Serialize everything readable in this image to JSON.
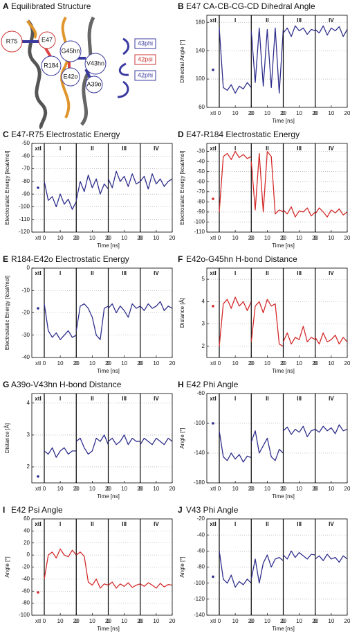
{
  "structure": {
    "label": "A",
    "title": "Equilibrated Structure",
    "residues": [
      "R75",
      "E47",
      "G45hn",
      "R184",
      "V43hn",
      "E42o",
      "A39o"
    ],
    "angles": [
      "43phi",
      "42psi",
      "42phi"
    ]
  },
  "chart_data": [
    {
      "type": "line",
      "label": "B",
      "title": "E47 CA-CB-CG-CD Dihedral Angle",
      "ylabel": "Dihedral Angle [°]",
      "xlabel": "Time [ns]",
      "xtl_label": "xtl",
      "xtl_value": 113,
      "color": "#2e2e8c",
      "ylim": [
        60,
        190
      ],
      "yticks": [
        60,
        100,
        140,
        180
      ],
      "xlim": [
        0,
        20
      ],
      "xticks": [
        0,
        10,
        20
      ],
      "x": [
        0,
        2.5,
        5,
        7.5,
        10,
        12.5,
        15,
        17.5,
        20
      ],
      "series": [
        {
          "name": "I",
          "values": [
            172,
            88,
            84,
            92,
            80,
            90,
            86,
            95,
            88
          ]
        },
        {
          "name": "II",
          "values": [
            168,
            95,
            172,
            90,
            170,
            88,
            172,
            80,
            170
          ]
        },
        {
          "name": "III",
          "values": [
            165,
            172,
            160,
            175,
            168,
            172,
            163,
            170,
            168
          ]
        },
        {
          "name": "IV",
          "values": [
            170,
            165,
            175,
            162,
            172,
            168,
            174,
            160,
            170
          ]
        }
      ]
    },
    {
      "type": "line",
      "label": "C",
      "title": "E47-R75 Electrostatic Energy",
      "ylabel": "Electrostatic Energy [kcal/mol]",
      "xlabel": "Time [ns]",
      "xtl_label": "xtl",
      "xtl_value": -85,
      "color": "#2e2e8c",
      "ylim": [
        -120,
        -50
      ],
      "yticks": [
        -120,
        -110,
        -100,
        -90,
        -80,
        -70,
        -60,
        -50
      ],
      "xlim": [
        0,
        20
      ],
      "xticks": [
        0,
        10,
        20
      ],
      "x": [
        0,
        2.5,
        5,
        7.5,
        10,
        12.5,
        15,
        17.5,
        20
      ],
      "series": [
        {
          "name": "I",
          "values": [
            -80,
            -95,
            -92,
            -100,
            -90,
            -98,
            -94,
            -102,
            -96
          ]
        },
        {
          "name": "II",
          "values": [
            -95,
            -80,
            -88,
            -75,
            -85,
            -78,
            -90,
            -82,
            -86
          ]
        },
        {
          "name": "III",
          "values": [
            -78,
            -85,
            -72,
            -80,
            -76,
            -84,
            -74,
            -82,
            -80
          ]
        },
        {
          "name": "IV",
          "values": [
            -80,
            -76,
            -86,
            -74,
            -82,
            -78,
            -84,
            -80,
            -78
          ]
        }
      ]
    },
    {
      "type": "line",
      "label": "D",
      "title": "E47-R184 Electrostatic Energy",
      "ylabel": "Electrostatic Energy [kcal/mol]",
      "xlabel": "Time [ns]",
      "xtl_label": "xtl",
      "xtl_value": -77,
      "color": "#d42a2a",
      "ylim": [
        -110,
        -22
      ],
      "yticks": [
        -110,
        -100,
        -90,
        -80,
        -70,
        -60,
        -50,
        -40,
        -30
      ],
      "xlim": [
        0,
        20
      ],
      "xticks": [
        0,
        10,
        20
      ],
      "x": [
        0,
        2.5,
        5,
        7.5,
        10,
        12.5,
        15,
        17.5,
        20
      ],
      "series": [
        {
          "name": "I",
          "values": [
            -90,
            -35,
            -32,
            -38,
            -30,
            -36,
            -33,
            -37,
            -35
          ]
        },
        {
          "name": "II",
          "values": [
            -40,
            -88,
            -32,
            -90,
            -30,
            -35,
            -92,
            -88,
            -90
          ]
        },
        {
          "name": "III",
          "values": [
            -88,
            -92,
            -85,
            -95,
            -89,
            -90,
            -86,
            -94,
            -90
          ]
        },
        {
          "name": "IV",
          "values": [
            -92,
            -86,
            -90,
            -95,
            -88,
            -91,
            -87,
            -93,
            -90
          ]
        }
      ]
    },
    {
      "type": "line",
      "label": "E",
      "title": "R184-E42o Electrostatic Energy",
      "ylabel": "Electrostatic Energy [kcal/mol]",
      "xlabel": "Time [ns]",
      "xtl_label": "xtl",
      "xtl_value": -18,
      "color": "#2e2e8c",
      "ylim": [
        -40,
        0
      ],
      "yticks": [
        -40,
        -30,
        -20,
        -10,
        0
      ],
      "xlim": [
        0,
        20
      ],
      "xticks": [
        0,
        10,
        20
      ],
      "x": [
        0,
        2.5,
        5,
        7.5,
        10,
        12.5,
        15,
        17.5,
        20
      ],
      "series": [
        {
          "name": "I",
          "values": [
            -16,
            -28,
            -31,
            -29,
            -32,
            -30,
            -28,
            -31,
            -30
          ]
        },
        {
          "name": "II",
          "values": [
            -28,
            -17,
            -16,
            -18,
            -22,
            -30,
            -32,
            -18,
            -17
          ]
        },
        {
          "name": "III",
          "values": [
            -18,
            -16,
            -20,
            -17,
            -19,
            -22,
            -16,
            -18,
            -17
          ]
        },
        {
          "name": "IV",
          "values": [
            -17,
            -19,
            -16,
            -18,
            -17,
            -15,
            -19,
            -17,
            -18
          ]
        }
      ]
    },
    {
      "type": "line",
      "label": "F",
      "title": "E42o-G45hn H-bond Distance",
      "ylabel": "Distance [Å]",
      "xlabel": "Time [ns]",
      "xtl_label": "xtl",
      "xtl_value": 3.8,
      "color": "#d42a2a",
      "ylim": [
        1.5,
        5.5
      ],
      "yticks": [
        2,
        3,
        4,
        5
      ],
      "xlim": [
        0,
        20
      ],
      "xticks": [
        0,
        10,
        20
      ],
      "x": [
        0,
        2.5,
        5,
        7.5,
        10,
        12.5,
        15,
        17.5,
        20
      ],
      "series": [
        {
          "name": "I",
          "values": [
            2,
            3.9,
            4.1,
            3.7,
            4.2,
            3.8,
            4,
            3.6,
            4
          ]
        },
        {
          "name": "II",
          "values": [
            2.2,
            3.8,
            4,
            3.5,
            4.1,
            3.8,
            3.9,
            2.1,
            2
          ]
        },
        {
          "name": "III",
          "values": [
            2.2,
            2.6,
            2.1,
            2.4,
            2.3,
            2.9,
            2.2,
            2.4,
            2.3
          ]
        },
        {
          "name": "IV",
          "values": [
            2.4,
            2.1,
            2.6,
            2.2,
            2.3,
            2.5,
            2.1,
            2.4,
            2.2
          ]
        }
      ]
    },
    {
      "type": "line",
      "label": "G",
      "title": "A39o-V43hn H-bond Distance",
      "ylabel": "Distance [Å]",
      "xlabel": "Time [ns]",
      "xtl_label": "xtl",
      "xtl_value": 1.7,
      "color": "#2e2e8c",
      "ylim": [
        1.5,
        4.3
      ],
      "yticks": [
        2,
        3,
        4
      ],
      "xlim": [
        0,
        20
      ],
      "xticks": [
        0,
        10,
        20
      ],
      "x": [
        0,
        2.5,
        5,
        7.5,
        10,
        12.5,
        15,
        17.5,
        20
      ],
      "series": [
        {
          "name": "I",
          "values": [
            2.5,
            2.4,
            2.6,
            2.3,
            2.5,
            2.6,
            2.4,
            2.5,
            2.5
          ]
        },
        {
          "name": "II",
          "values": [
            2.8,
            2.9,
            2.6,
            2.4,
            2.5,
            2.9,
            2.8,
            3,
            2.7
          ]
        },
        {
          "name": "III",
          "values": [
            2.8,
            2.9,
            2.7,
            2.8,
            3,
            2.7,
            2.9,
            2.8,
            2.8
          ]
        },
        {
          "name": "IV",
          "values": [
            2.7,
            2.9,
            2.8,
            2.7,
            2.9,
            2.8,
            2.7,
            2.9,
            2.8
          ]
        }
      ]
    },
    {
      "type": "line",
      "label": "H",
      "title": "E42 Phi Angle",
      "ylabel": "Angle [°]",
      "xlabel": "Time [ns]",
      "xtl_label": "xtl",
      "xtl_value": -100,
      "color": "#2e2e8c",
      "ylim": [
        -180,
        -60
      ],
      "yticks": [
        -180,
        -140,
        -100,
        -60
      ],
      "xlim": [
        0,
        20
      ],
      "xticks": [
        0,
        10,
        20
      ],
      "x": [
        0,
        2.5,
        5,
        7.5,
        10,
        12.5,
        15,
        17.5,
        20
      ],
      "series": [
        {
          "name": "I",
          "values": [
            -110,
            -145,
            -150,
            -140,
            -148,
            -142,
            -152,
            -144,
            -146
          ]
        },
        {
          "name": "II",
          "values": [
            -125,
            -110,
            -140,
            -130,
            -120,
            -145,
            -150,
            -135,
            -140
          ]
        },
        {
          "name": "III",
          "values": [
            -110,
            -105,
            -115,
            -108,
            -112,
            -104,
            -118,
            -110,
            -108
          ]
        },
        {
          "name": "IV",
          "values": [
            -108,
            -112,
            -104,
            -110,
            -106,
            -114,
            -102,
            -110,
            -108
          ]
        }
      ]
    },
    {
      "type": "line",
      "label": "I",
      "title": "E42 Psi Angle",
      "ylabel": "Angle [°]",
      "xlabel": "Time [ns]",
      "xtl_label": "xtl",
      "xtl_value": -62,
      "color": "#d42a2a",
      "ylim": [
        -100,
        60
      ],
      "yticks": [
        -100,
        -80,
        -60,
        -40,
        -20,
        0,
        20,
        40,
        60
      ],
      "xlim": [
        0,
        20
      ],
      "xticks": [
        0,
        10,
        20
      ],
      "x": [
        0,
        2.5,
        5,
        7.5,
        10,
        12.5,
        15,
        17.5,
        20
      ],
      "series": [
        {
          "name": "I",
          "values": [
            -40,
            0,
            5,
            -5,
            10,
            0,
            -3,
            8,
            0
          ]
        },
        {
          "name": "II",
          "values": [
            0,
            5,
            -2,
            -45,
            -50,
            -40,
            -55,
            -48,
            -50
          ]
        },
        {
          "name": "III",
          "values": [
            -50,
            -45,
            -55,
            -48,
            -52,
            -46,
            -54,
            -50,
            -48
          ]
        },
        {
          "name": "IV",
          "values": [
            -48,
            -52,
            -46,
            -50,
            -55,
            -47,
            -53,
            -49,
            -50
          ]
        }
      ]
    },
    {
      "type": "line",
      "label": "J",
      "title": "V43 Phi Angle",
      "ylabel": "Angle [°]",
      "xlabel": "Time [ns]",
      "xtl_label": "xtl",
      "xtl_value": -92,
      "color": "#2e2e8c",
      "ylim": [
        -140,
        -20
      ],
      "yticks": [
        -140,
        -120,
        -100,
        -80,
        -60,
        -40,
        -20
      ],
      "xlim": [
        0,
        20
      ],
      "xticks": [
        0,
        10,
        20
      ],
      "x": [
        0,
        2.5,
        5,
        7.5,
        10,
        12.5,
        15,
        17.5,
        20
      ],
      "series": [
        {
          "name": "I",
          "values": [
            -60,
            -95,
            -100,
            -90,
            -105,
            -98,
            -102,
            -95,
            -100
          ]
        },
        {
          "name": "II",
          "values": [
            -95,
            -70,
            -100,
            -75,
            -65,
            -80,
            -70,
            -68,
            -72
          ]
        },
        {
          "name": "III",
          "values": [
            -65,
            -70,
            -60,
            -68,
            -62,
            -66,
            -70,
            -64,
            -65
          ]
        },
        {
          "name": "IV",
          "values": [
            -70,
            -66,
            -72,
            -64,
            -70,
            -68,
            -74,
            -66,
            -70
          ]
        }
      ]
    }
  ]
}
